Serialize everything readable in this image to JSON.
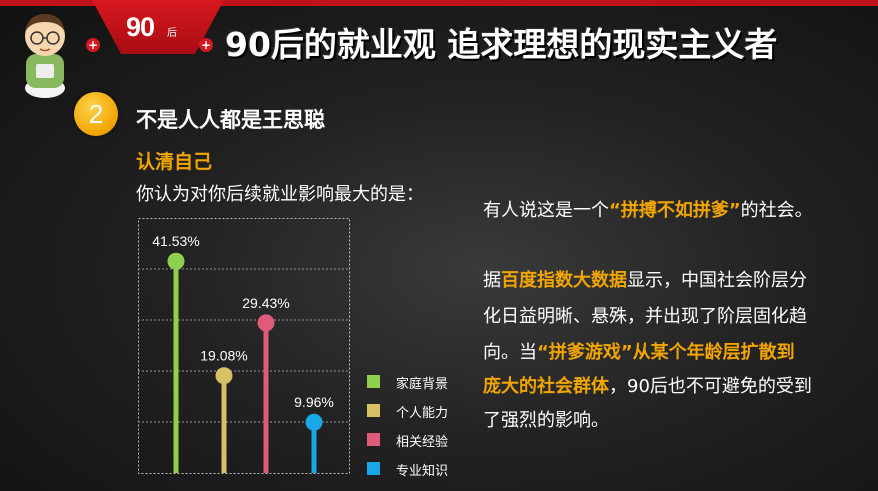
{
  "header": {
    "tag_number": "90",
    "tag_suffix": "后",
    "plus_symbol": "+",
    "title": "90后的就业观 追求理想的现实主义者"
  },
  "section": {
    "number": "2",
    "title": "不是人人都是王思聪",
    "subtitle": "认清自己",
    "question": "你认为对你后续就业影响最大的是："
  },
  "chart_data": {
    "type": "lollipop",
    "categories": [
      "家庭背景",
      "个人能力",
      "相关经验",
      "专业知识"
    ],
    "values": [
      41.53,
      19.08,
      29.43,
      9.96
    ],
    "value_labels": [
      "41.53%",
      "19.08%",
      "29.43%",
      "9.96%"
    ],
    "colors": [
      "#8fd14f",
      "#d8c064",
      "#e05a7a",
      "#1aa7e8"
    ],
    "ylim": [
      0,
      50
    ],
    "grid": "dotted horizontal lines",
    "legend_position": "right"
  },
  "right_text": {
    "line1_before": "有人说这是一个",
    "line1_highlight": "“拼搏不如拼爹”",
    "line1_after": "的社会。",
    "line2_before": "据",
    "line2_highlight": "百度指数大数据",
    "line2_after": "显示，中国社会阶层分",
    "line3": "化日益明晰、悬殊，并出现了阶层固化趋",
    "line4_before": "向。当",
    "line4_highlight": "“拼爹游戏”从某个年龄层扩散到",
    "line5_highlight": "庞大的社会群体",
    "line5_after": "，90后也不可避免的受到",
    "line6": "了强烈的影响。"
  }
}
